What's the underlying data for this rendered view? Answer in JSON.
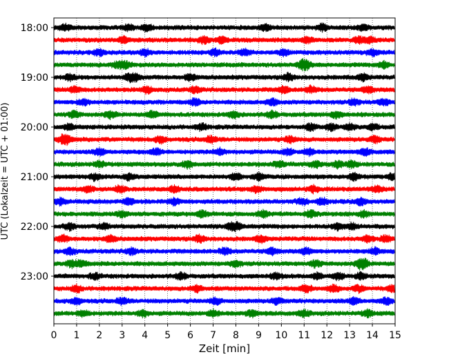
{
  "chart_data": {
    "type": "line",
    "title": "",
    "xlabel": "Zeit  [min]",
    "ylabel": "UTC (Lokalzeit = UTC + 01:00)",
    "xlim": [
      0,
      15
    ],
    "x_ticks": [
      0,
      1,
      2,
      3,
      4,
      5,
      6,
      7,
      8,
      9,
      10,
      11,
      12,
      13,
      14,
      15
    ],
    "y_tick_labels": [
      "18:00",
      "19:00",
      "20:00",
      "21:00",
      "22:00",
      "23:00"
    ],
    "y_tick_trace_index": [
      0,
      4,
      8,
      12,
      16,
      20
    ],
    "grid": "vertical dotted",
    "legend": "none",
    "trace_colors": [
      "#000000",
      "#ff0000",
      "#0000ff",
      "#008000"
    ],
    "traces": [
      {
        "start": "18:00",
        "events_min": [
          0.5,
          3.3,
          4.1,
          9.3,
          11.8,
          13.6
        ]
      },
      {
        "start": "18:15",
        "events_min": [
          3.1,
          6.6,
          7.4,
          11.1,
          13.4,
          13.9
        ]
      },
      {
        "start": "18:30",
        "events_min": [
          2.0,
          4.0,
          7.1,
          8.4,
          10.1,
          14.0
        ]
      },
      {
        "start": "18:45",
        "events_min": [
          2.8,
          3.2,
          10.9,
          11.1,
          14.5
        ]
      },
      {
        "start": "19:00",
        "events_min": [
          0.7,
          3.3,
          3.6,
          6.0,
          10.3,
          13.6
        ]
      },
      {
        "start": "19:15",
        "events_min": [
          0.9,
          4.1,
          6.2,
          10.1,
          11.3,
          13.8
        ]
      },
      {
        "start": "19:30",
        "events_min": [
          1.3,
          6.2,
          9.6,
          13.2,
          14.5
        ]
      },
      {
        "start": "19:45",
        "events_min": [
          0.9,
          2.5,
          4.3,
          7.9,
          9.6,
          12.4
        ]
      },
      {
        "start": "20:00",
        "events_min": [
          0.7,
          6.5,
          11.3,
          12.2,
          13.0,
          14.0
        ]
      },
      {
        "start": "20:15",
        "events_min": [
          0.4,
          0.6,
          4.7,
          6.9,
          10.4,
          14.1
        ]
      },
      {
        "start": "20:30",
        "events_min": [
          2.0,
          4.5,
          7.3,
          10.3,
          11.2,
          13.7
        ]
      },
      {
        "start": "20:45",
        "events_min": [
          2.0,
          5.9,
          9.9,
          11.5,
          12.5,
          13.1
        ]
      },
      {
        "start": "21:00",
        "events_min": [
          1.8,
          3.3,
          8.0,
          9.0,
          13.2,
          14.9
        ]
      },
      {
        "start": "21:15",
        "events_min": [
          1.5,
          2.9,
          5.3,
          8.9,
          11.4,
          14.2
        ]
      },
      {
        "start": "21:30",
        "events_min": [
          0.3,
          3.3,
          5.3,
          10.9,
          11.8,
          13.5
        ]
      },
      {
        "start": "21:45",
        "events_min": [
          3.0,
          6.5,
          9.2,
          11.3,
          13.6
        ]
      },
      {
        "start": "22:00",
        "events_min": [
          0.7,
          2.2,
          7.8,
          8.1,
          12.5,
          13.1
        ]
      },
      {
        "start": "22:15",
        "events_min": [
          0.4,
          2.5,
          6.4,
          9.1,
          13.8,
          14.6
        ]
      },
      {
        "start": "22:30",
        "events_min": [
          0.7,
          3.4,
          7.5,
          9.6,
          11.1,
          14.1
        ]
      },
      {
        "start": "22:45",
        "events_min": [
          0.8,
          1.2,
          8.0,
          11.5,
          13.5,
          13.6
        ]
      },
      {
        "start": "23:00",
        "events_min": [
          1.8,
          5.6,
          9.8,
          11.6,
          12.5,
          13.5
        ]
      },
      {
        "start": "23:15",
        "events_min": [
          1.0,
          6.3,
          11.1,
          12.3,
          13.4,
          14.9
        ]
      },
      {
        "start": "23:30",
        "events_min": [
          1.0,
          3.0,
          7.1,
          9.8,
          13.2,
          14.6
        ]
      },
      {
        "start": "23:45",
        "events_min": [
          1.3,
          3.9,
          7.0,
          8.7,
          11.0,
          13.8
        ]
      }
    ]
  }
}
